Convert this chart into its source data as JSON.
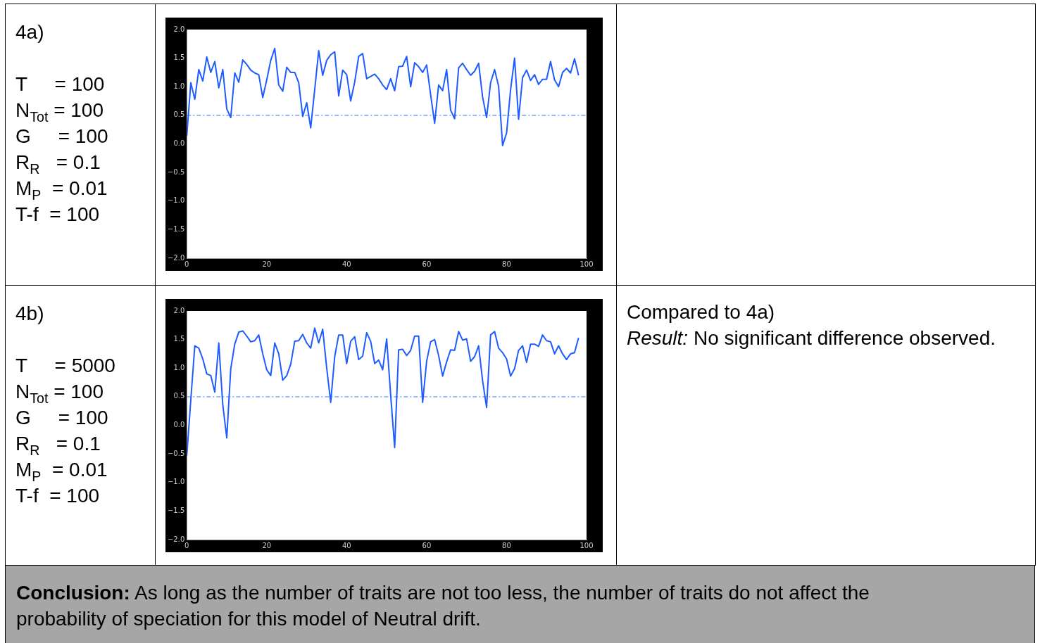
{
  "chart_data": [
    {
      "type": "line",
      "color": "#1f5cff",
      "xlim": [
        0,
        100
      ],
      "xticks": [
        0,
        20,
        40,
        60,
        80,
        100
      ],
      "ylim": [
        -2,
        2
      ],
      "yticks": [
        {
          "value": -2,
          "label": "−2.0"
        },
        {
          "value": -1.5,
          "label": "−1.5"
        },
        {
          "value": -1,
          "label": "−1.0"
        },
        {
          "value": -0.5,
          "label": "−0.5"
        },
        {
          "value": 0,
          "label": "0.0"
        },
        {
          "value": 0.5,
          "label": "0.5"
        },
        {
          "value": 1,
          "label": "1.0"
        },
        {
          "value": 1.5,
          "label": "1.5"
        },
        {
          "value": 2,
          "label": "2.0"
        }
      ],
      "marker": "none",
      "line_style": "solid",
      "ref_lines": [
        {
          "axis": "y",
          "value": 0.5,
          "color": "#7aa2ff",
          "line_style": "dashed"
        }
      ],
      "annotations": [
        "4a)",
        "T     = 100",
        "N$_{Tot}$ = 100",
        "G     = 100",
        "R$_{R}$   = 0.1",
        "M$_{P}$  = 0.01",
        "T-f  = 100"
      ],
      "x": [
        0,
        1,
        2,
        3,
        4,
        5,
        6,
        7,
        8,
        9,
        10,
        11,
        12,
        13,
        14,
        15,
        16,
        17,
        18,
        19,
        20,
        21,
        22,
        23,
        24,
        25,
        26,
        27,
        28,
        29,
        30,
        31,
        32,
        33,
        34,
        35,
        36,
        37,
        38,
        39,
        40,
        41,
        42,
        43,
        44,
        45,
        46,
        47,
        48,
        49,
        50,
        51,
        52,
        53,
        54,
        55,
        56,
        57,
        58,
        59,
        60,
        61,
        62,
        63,
        64,
        65,
        66,
        67,
        68,
        69,
        70,
        71,
        72,
        73,
        74,
        75,
        76,
        77,
        78,
        79,
        80,
        81,
        82,
        83,
        84,
        85,
        86,
        87,
        88,
        89,
        90,
        91,
        92,
        93,
        94,
        95,
        96,
        97,
        98
      ],
      "values": [
        0.14,
        1.07,
        0.78,
        1.3,
        1.1,
        1.52,
        1.25,
        1.44,
        0.98,
        1.3,
        0.61,
        0.46,
        1.24,
        1.08,
        1.47,
        1.39,
        1.29,
        1.24,
        1.21,
        0.81,
        1.12,
        1.46,
        1.67,
        1.03,
        0.92,
        1.34,
        1.25,
        1.25,
        1.07,
        0.48,
        0.72,
        0.28,
        0.95,
        1.63,
        1.2,
        1.46,
        1.56,
        1.61,
        0.84,
        1.29,
        1.21,
        0.75,
        1.08,
        1.53,
        1.58,
        1.14,
        1.18,
        1.22,
        1.14,
        1.03,
        0.95,
        1.14,
        0.93,
        1.35,
        1.36,
        1.53,
        1.0,
        1.42,
        1.35,
        1.25,
        1.38,
        0.86,
        0.36,
        1.03,
        0.93,
        1.3,
        0.59,
        0.44,
        1.33,
        1.41,
        1.3,
        1.2,
        1.27,
        1.41,
        0.82,
        0.46,
        1.07,
        1.3,
        1.01,
        -0.03,
        0.19,
        0.95,
        1.5,
        0.43,
        1.16,
        1.29,
        1.11,
        1.21,
        1.04,
        1.13,
        1.13,
        1.44,
        1.12,
        1.0,
        1.25,
        1.32,
        1.24,
        1.49,
        1.2
      ]
    },
    {
      "type": "line",
      "color": "#1f5cff",
      "xlim": [
        0,
        100
      ],
      "xticks": [
        0,
        20,
        40,
        60,
        80,
        100
      ],
      "ylim": [
        -2,
        2
      ],
      "yticks": [
        {
          "value": -2,
          "label": "−2.0"
        },
        {
          "value": -1.5,
          "label": "−1.5"
        },
        {
          "value": -1,
          "label": "−1.0"
        },
        {
          "value": -0.5,
          "label": "−0.5"
        },
        {
          "value": 0,
          "label": "0.0"
        },
        {
          "value": 0.5,
          "label": "0.5"
        },
        {
          "value": 1,
          "label": "1.0"
        },
        {
          "value": 1.5,
          "label": "1.5"
        },
        {
          "value": 2,
          "label": "2.0"
        }
      ],
      "marker": "none",
      "line_style": "solid",
      "ref_lines": [
        {
          "axis": "y",
          "value": 0.5,
          "color": "#7aa2ff",
          "line_style": "dashed"
        }
      ],
      "annotations": [
        "4b)",
        "T     = 5000",
        "N$_{Tot}$ = 100",
        "G     = 100",
        "R$_{R}$   = 0.1",
        "M$_{P}$  = 0.01",
        "T-f  = 100"
      ],
      "x": [
        0,
        1,
        2,
        3,
        4,
        5,
        6,
        7,
        8,
        9,
        10,
        11,
        12,
        13,
        14,
        15,
        16,
        17,
        18,
        19,
        20,
        21,
        22,
        23,
        24,
        25,
        26,
        27,
        28,
        29,
        30,
        31,
        32,
        33,
        34,
        35,
        36,
        37,
        38,
        39,
        40,
        41,
        42,
        43,
        44,
        45,
        46,
        47,
        48,
        49,
        50,
        51,
        52,
        53,
        54,
        55,
        56,
        57,
        58,
        59,
        60,
        61,
        62,
        63,
        64,
        65,
        66,
        67,
        68,
        69,
        70,
        71,
        72,
        73,
        74,
        75,
        76,
        77,
        78,
        79,
        80,
        81,
        82,
        83,
        84,
        85,
        86,
        87,
        88,
        89,
        90,
        91,
        92,
        93,
        94,
        95,
        96,
        97,
        98
      ],
      "values": [
        -0.53,
        0.44,
        1.39,
        1.35,
        1.16,
        0.9,
        0.87,
        0.58,
        1.44,
        0.36,
        -0.22,
        0.99,
        1.42,
        1.63,
        1.65,
        1.56,
        1.46,
        1.48,
        1.58,
        1.25,
        0.97,
        0.87,
        1.44,
        1.25,
        0.79,
        0.87,
        1.07,
        1.47,
        1.48,
        1.59,
        1.44,
        1.35,
        1.7,
        1.44,
        1.68,
        1.0,
        0.4,
        1.2,
        1.58,
        1.58,
        1.08,
        1.47,
        1.55,
        1.15,
        1.21,
        1.62,
        1.47,
        1.08,
        1.14,
        0.97,
        1.51,
        0.53,
        -0.39,
        1.32,
        1.33,
        1.22,
        1.31,
        1.56,
        1.56,
        0.4,
        1.12,
        1.46,
        1.5,
        1.22,
        0.86,
        1.11,
        1.32,
        1.31,
        1.64,
        1.49,
        1.51,
        1.12,
        1.2,
        1.39,
        0.78,
        0.31,
        1.58,
        1.64,
        1.35,
        1.27,
        1.16,
        0.86,
        0.99,
        1.31,
        1.39,
        1.1,
        1.42,
        1.42,
        1.38,
        1.58,
        1.48,
        1.46,
        1.25,
        1.39,
        1.25,
        1.15,
        1.25,
        1.27,
        1.53
      ]
    },
    {
      "type": "other",
      "annotations": [
        "Compared to 4a)",
        "Result:",
        "No significant difference observed."
      ]
    },
    {
      "type": "other",
      "annotations": [
        "Conclusion:",
        "As long as the number of traits are not too less, the number of traits do not affect the probability of speciation for this model of Neutral drift."
      ]
    }
  ]
}
